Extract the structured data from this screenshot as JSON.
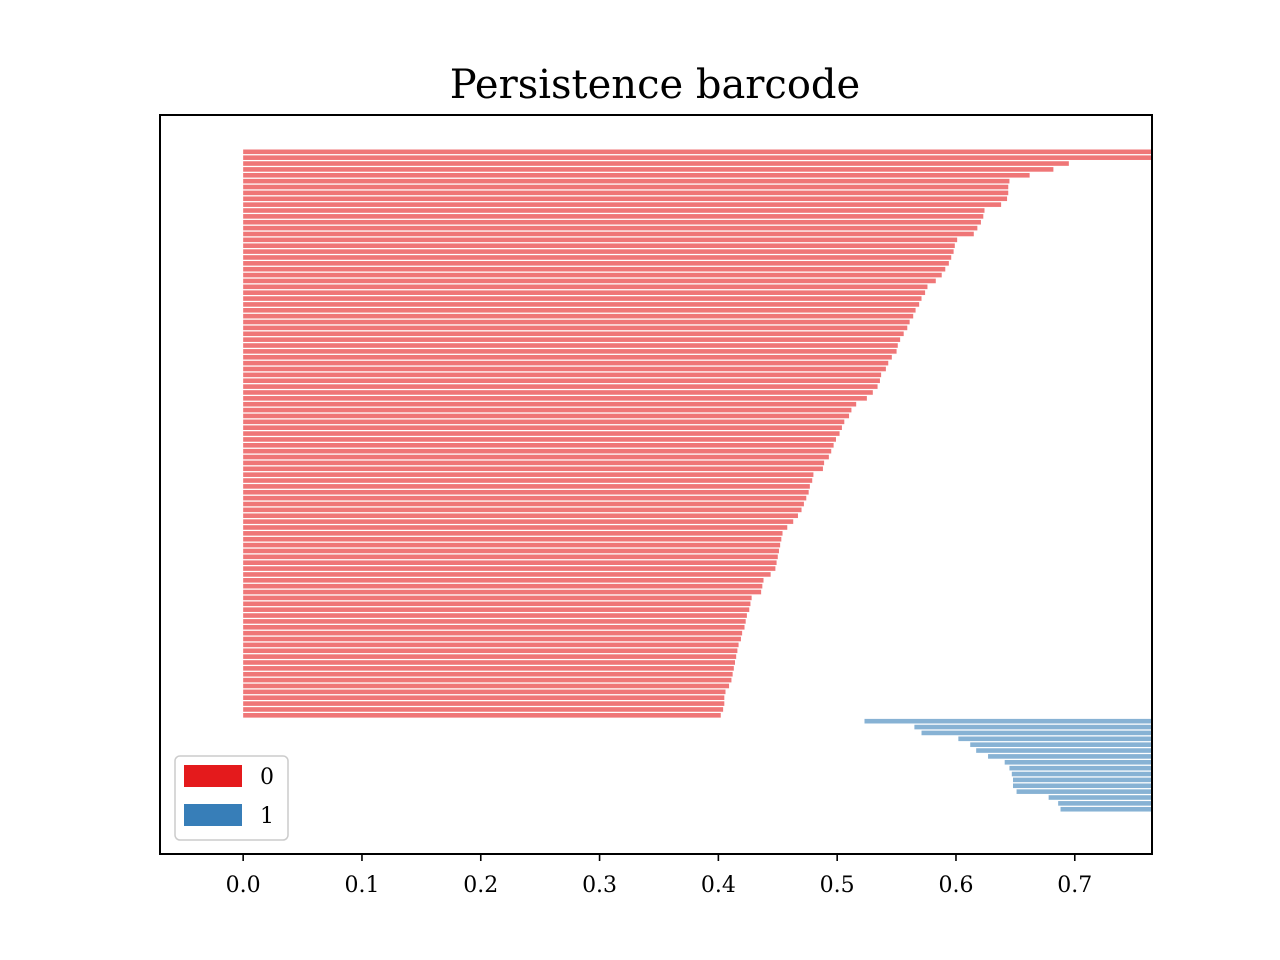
{
  "chart_data": {
    "type": "bar",
    "orientation": "horizontal",
    "title": "Persistence barcode",
    "xlabel": "",
    "ylabel": "",
    "xlim": [
      -0.07,
      0.765
    ],
    "xticks": [
      "0.0",
      "0.1",
      "0.2",
      "0.3",
      "0.4",
      "0.5",
      "0.6",
      "0.7"
    ],
    "grid": false,
    "legend": {
      "placement": "lower-left",
      "entries": [
        {
          "label": "0",
          "color": "#e41a1c"
        },
        {
          "label": "1",
          "color": "#377eb8"
        }
      ]
    },
    "series": [
      {
        "name": "0",
        "color": "#e41a1c",
        "death_infinite_count": 2,
        "bars": [
          [
            0.0,
            0.695
          ],
          [
            0.0,
            0.682
          ],
          [
            0.0,
            0.662
          ],
          [
            0.0,
            0.645
          ],
          [
            0.0,
            0.644
          ],
          [
            0.0,
            0.644
          ],
          [
            0.0,
            0.643
          ],
          [
            0.0,
            0.638
          ],
          [
            0.0,
            0.624
          ],
          [
            0.0,
            0.623
          ],
          [
            0.0,
            0.621
          ],
          [
            0.0,
            0.618
          ],
          [
            0.0,
            0.615
          ],
          [
            0.0,
            0.601
          ],
          [
            0.0,
            0.599
          ],
          [
            0.0,
            0.598
          ],
          [
            0.0,
            0.596
          ],
          [
            0.0,
            0.594
          ],
          [
            0.0,
            0.591
          ],
          [
            0.0,
            0.588
          ],
          [
            0.0,
            0.583
          ],
          [
            0.0,
            0.576
          ],
          [
            0.0,
            0.574
          ],
          [
            0.0,
            0.571
          ],
          [
            0.0,
            0.569
          ],
          [
            0.0,
            0.566
          ],
          [
            0.0,
            0.564
          ],
          [
            0.0,
            0.561
          ],
          [
            0.0,
            0.559
          ],
          [
            0.0,
            0.556
          ],
          [
            0.0,
            0.553
          ],
          [
            0.0,
            0.551
          ],
          [
            0.0,
            0.55
          ],
          [
            0.0,
            0.546
          ],
          [
            0.0,
            0.543
          ],
          [
            0.0,
            0.541
          ],
          [
            0.0,
            0.537
          ],
          [
            0.0,
            0.536
          ],
          [
            0.0,
            0.534
          ],
          [
            0.0,
            0.53
          ],
          [
            0.0,
            0.525
          ],
          [
            0.0,
            0.516
          ],
          [
            0.0,
            0.512
          ],
          [
            0.0,
            0.51
          ],
          [
            0.0,
            0.506
          ],
          [
            0.0,
            0.504
          ],
          [
            0.0,
            0.502
          ],
          [
            0.0,
            0.499
          ],
          [
            0.0,
            0.497
          ],
          [
            0.0,
            0.495
          ],
          [
            0.0,
            0.493
          ],
          [
            0.0,
            0.489
          ],
          [
            0.0,
            0.488
          ],
          [
            0.0,
            0.48
          ],
          [
            0.0,
            0.479
          ],
          [
            0.0,
            0.477
          ],
          [
            0.0,
            0.476
          ],
          [
            0.0,
            0.474
          ],
          [
            0.0,
            0.472
          ],
          [
            0.0,
            0.47
          ],
          [
            0.0,
            0.467
          ],
          [
            0.0,
            0.463
          ],
          [
            0.0,
            0.458
          ],
          [
            0.0,
            0.454
          ],
          [
            0.0,
            0.453
          ],
          [
            0.0,
            0.452
          ],
          [
            0.0,
            0.451
          ],
          [
            0.0,
            0.45
          ],
          [
            0.0,
            0.449
          ],
          [
            0.0,
            0.448
          ],
          [
            0.0,
            0.444
          ],
          [
            0.0,
            0.438
          ],
          [
            0.0,
            0.437
          ],
          [
            0.0,
            0.436
          ],
          [
            0.0,
            0.428
          ],
          [
            0.0,
            0.427
          ],
          [
            0.0,
            0.426
          ],
          [
            0.0,
            0.424
          ],
          [
            0.0,
            0.423
          ],
          [
            0.0,
            0.422
          ],
          [
            0.0,
            0.42
          ],
          [
            0.0,
            0.419
          ],
          [
            0.0,
            0.417
          ],
          [
            0.0,
            0.416
          ],
          [
            0.0,
            0.415
          ],
          [
            0.0,
            0.414
          ],
          [
            0.0,
            0.413
          ],
          [
            0.0,
            0.412
          ],
          [
            0.0,
            0.411
          ],
          [
            0.0,
            0.409
          ],
          [
            0.0,
            0.406
          ],
          [
            0.0,
            0.405
          ],
          [
            0.0,
            0.405
          ],
          [
            0.0,
            0.404
          ],
          [
            0.0,
            0.402
          ]
        ]
      },
      {
        "name": "1",
        "color": "#377eb8",
        "bars": [
          [
            0.523,
            0.765
          ],
          [
            0.565,
            0.765
          ],
          [
            0.571,
            0.765
          ],
          [
            0.602,
            0.765
          ],
          [
            0.612,
            0.765
          ],
          [
            0.617,
            0.765
          ],
          [
            0.627,
            0.765
          ],
          [
            0.641,
            0.765
          ],
          [
            0.645,
            0.765
          ],
          [
            0.647,
            0.765
          ],
          [
            0.648,
            0.765
          ],
          [
            0.648,
            0.765
          ],
          [
            0.651,
            0.765
          ],
          [
            0.678,
            0.765
          ],
          [
            0.686,
            0.765
          ],
          [
            0.688,
            0.765
          ]
        ]
      }
    ]
  }
}
